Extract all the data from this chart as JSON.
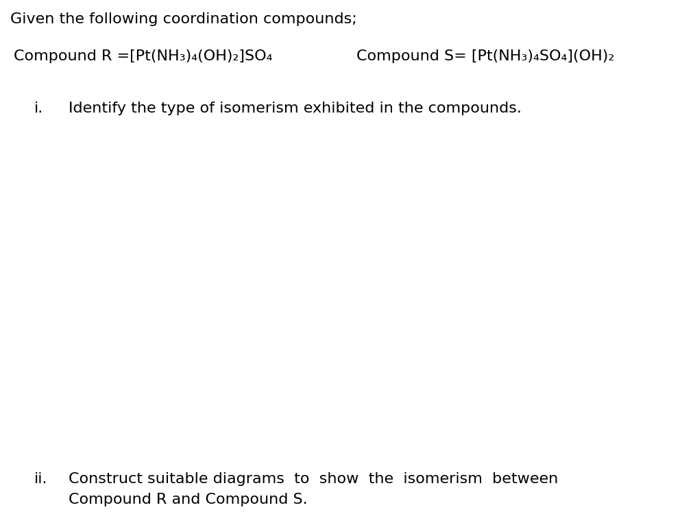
{
  "bg_color": "#ffffff",
  "title_line": "Given the following coordination compounds;",
  "compound_R": "Compound R =[Pt(NH₃)₄(OH)₂]SO₄",
  "compound_S": "Compound S= [Pt(NH₃)₄SO₄](OH)₂",
  "item_i_label": "i.",
  "item_i_text": "Identify the type of isomerism exhibited in the compounds.",
  "item_ii_label": "ii.",
  "item_ii_text_line1": "Construct suitable diagrams  to  show  the  isomerism  between",
  "item_ii_text_line2": "Compound R and Compound S.",
  "font_size_title": 16,
  "font_size_compounds": 16,
  "font_size_items": 16,
  "font_family": "DejaVu Sans",
  "fig_width": 10.11,
  "fig_height": 7.46,
  "dpi": 100
}
